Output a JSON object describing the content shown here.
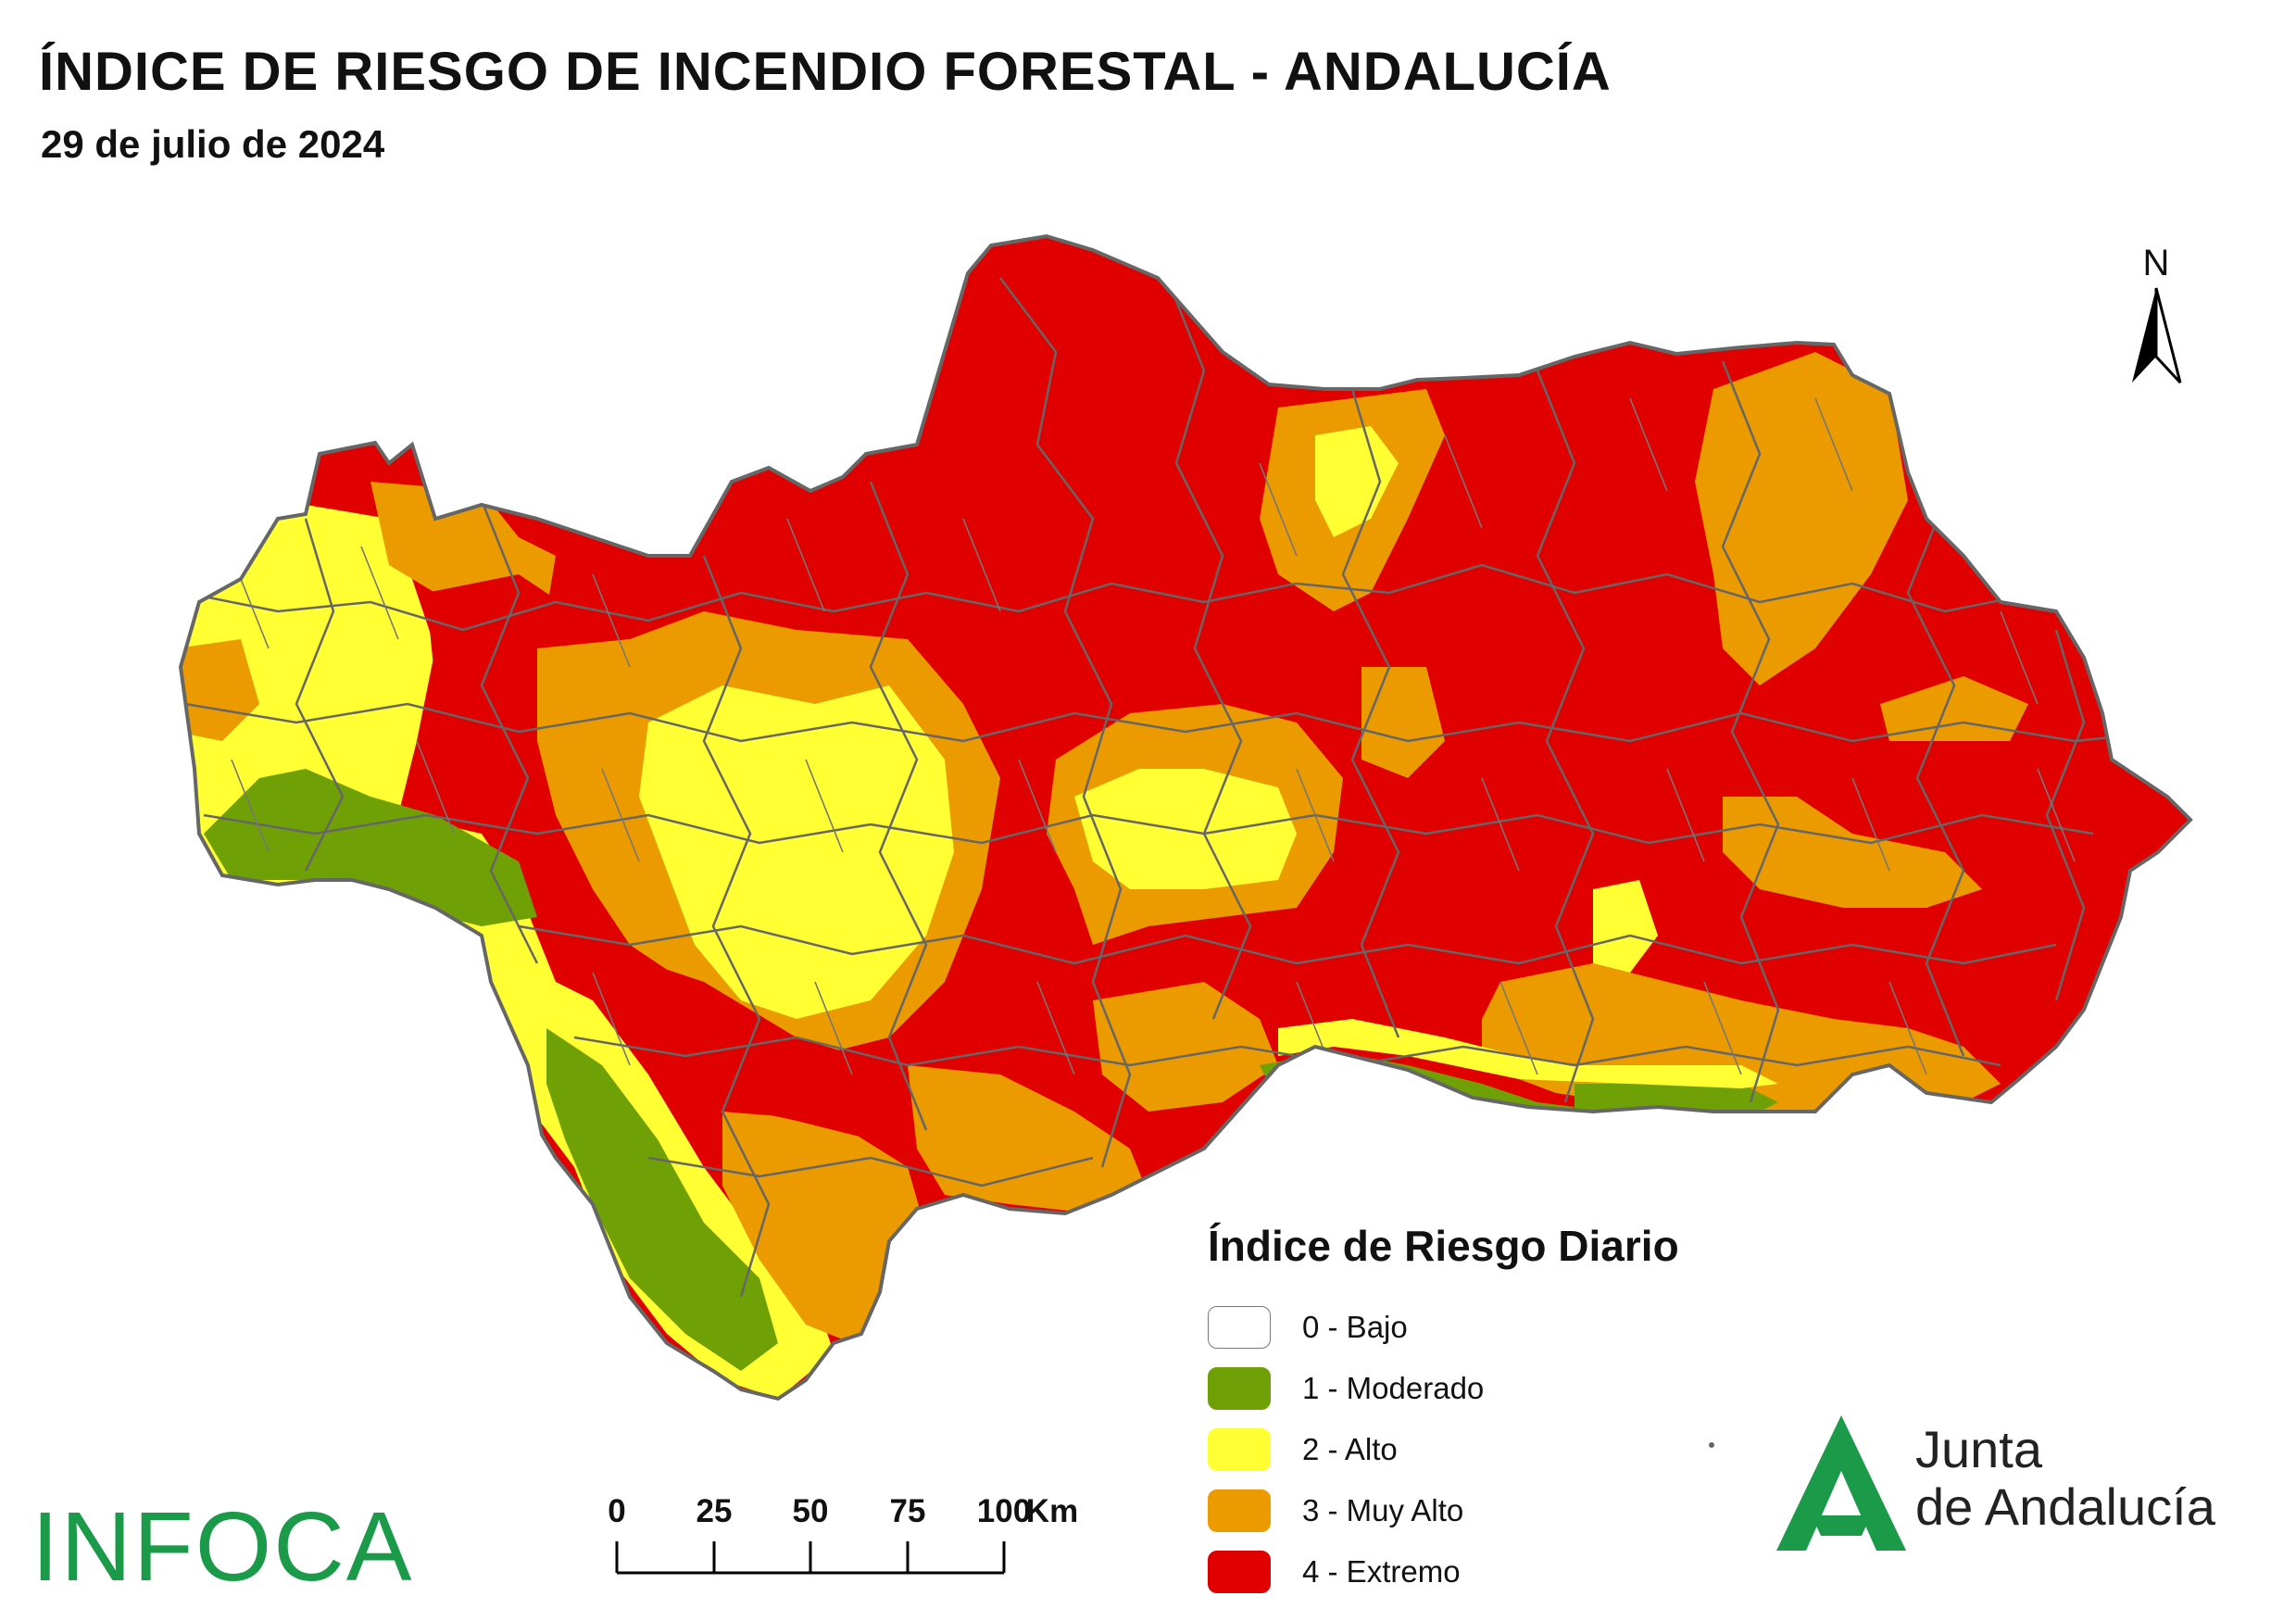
{
  "header": {
    "title": "ÍNDICE DE RIESGO DE INCENDIO FORESTAL - ANDALUCÍA",
    "date": "29 de julio de 2024"
  },
  "north_arrow": {
    "label": "N",
    "icon": "north-arrow-icon"
  },
  "legend": {
    "title": "Índice de Riesgo Diario",
    "items": [
      {
        "label": "0 - Bajo",
        "color": "#ffffff"
      },
      {
        "label": "1 - Moderado",
        "color": "#6fa106"
      },
      {
        "label": "2 - Alto",
        "color": "#ffff33"
      },
      {
        "label": "3 - Muy Alto",
        "color": "#eb9b00"
      },
      {
        "label": "4 - Extremo",
        "color": "#e10000"
      }
    ]
  },
  "scale_bar": {
    "ticks": [
      "0",
      "25",
      "50",
      "75",
      "100"
    ],
    "unit": "Km"
  },
  "logos": {
    "infoca": "INFOCA",
    "junta_line1": "Junta",
    "junta_line2": "de Andalucía",
    "junta_color": "#1b9a4a"
  },
  "colors": {
    "border": "#666666"
  }
}
